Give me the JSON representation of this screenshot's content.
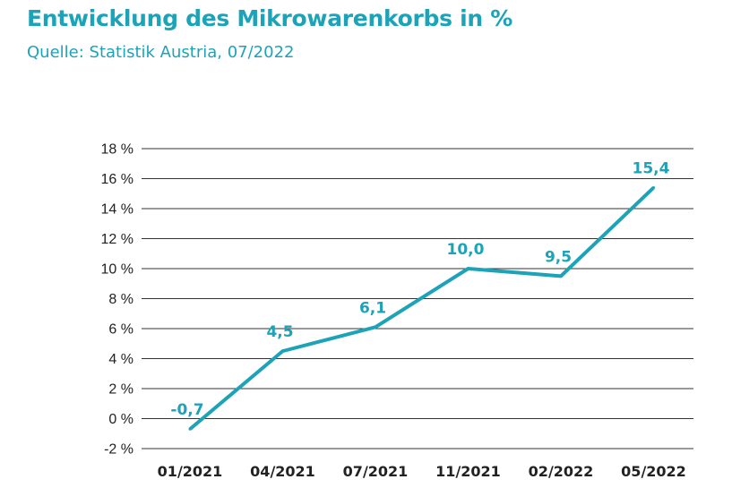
{
  "chart_data": {
    "type": "line",
    "title": "Entwicklung des Mikrowarenkorbs in %",
    "subtitle": "Quelle: Statistik Austria, 07/2022",
    "categories": [
      "01/2021",
      "04/2021",
      "07/2021",
      "11/2021",
      "02/2022",
      "05/2022"
    ],
    "series": [
      {
        "values": [
          -0.7,
          4.5,
          6.1,
          10.0,
          9.5,
          15.4
        ],
        "labels": [
          "-0,7",
          "4,5",
          "6,1",
          "10,0",
          "9,5",
          "15,4"
        ],
        "color": "#1da3b8"
      }
    ],
    "yticks": [
      -2,
      0,
      2,
      4,
      6,
      8,
      10,
      12,
      14,
      16,
      18
    ],
    "ytick_labels": [
      "-2 %",
      "0 %",
      "2 %",
      "4 %",
      "6 %",
      "8 %",
      "10 %",
      "12 %",
      "14 %",
      "16 %",
      "18 %"
    ],
    "ylim": [
      -2,
      18
    ],
    "grid": true,
    "legend": "none",
    "gridline_color": "#333333"
  }
}
